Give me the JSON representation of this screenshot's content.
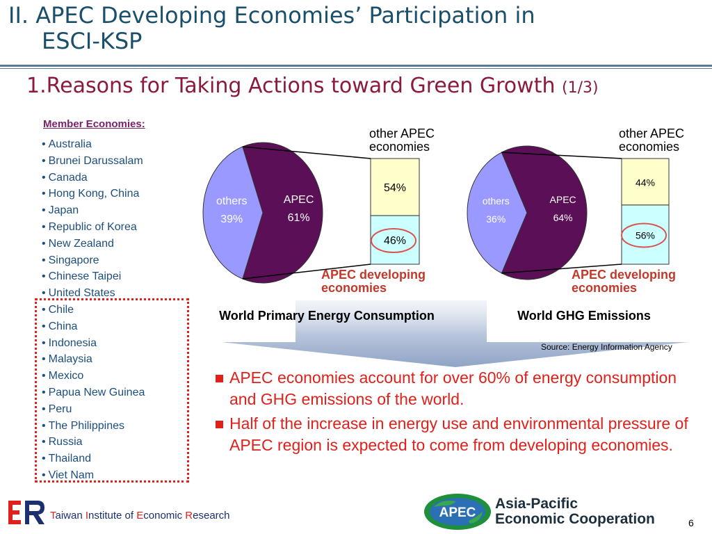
{
  "title": {
    "line1": "II. APEC Developing Economies’ Participation in",
    "line2": "ESCI-KSP"
  },
  "subtitle": {
    "main": "1.Reasons for Taking Actions toward Green Growth",
    "part": "(1/3)"
  },
  "members": {
    "heading": "Member Economies:",
    "developed": [
      "Australia",
      "Brunei Darussalam",
      "Canada",
      "Hong Kong, China",
      "Japan",
      "Republic of Korea",
      "New Zealand",
      "Singapore",
      "Chinese Taipei",
      "United States"
    ],
    "developing": [
      "Chile",
      "China",
      "Indonesia",
      "Malaysia",
      "Mexico",
      "Papua New Guinea",
      "Peru",
      "The Philippines",
      "Russia",
      "Thailand",
      "Viet Nam"
    ]
  },
  "chart_data": [
    {
      "type": "pie",
      "title": "World Primary Energy Consumption",
      "slices": [
        {
          "label": "others",
          "value": 39,
          "value_label": "39%"
        },
        {
          "label": "APEC",
          "value": 61,
          "value_label": "61%"
        }
      ],
      "breakdown": {
        "of": "APEC",
        "segments": [
          {
            "label": "other APEC economies",
            "label_lines": [
              "other APEC",
              "economies"
            ],
            "value": 54,
            "value_label": "54%"
          },
          {
            "label": "APEC developing economies",
            "label_lines": [
              "APEC developing",
              "economies"
            ],
            "value": 46,
            "value_label": "46%",
            "highlighted": true
          }
        ]
      }
    },
    {
      "type": "pie",
      "title": "World GHG Emissions",
      "slices": [
        {
          "label": "others",
          "value": 36,
          "value_label": "36%"
        },
        {
          "label": "APEC",
          "value": 64,
          "value_label": "64%"
        }
      ],
      "breakdown": {
        "of": "APEC",
        "segments": [
          {
            "label": "other APEC economies",
            "label_lines": [
              "other APEC",
              "economies"
            ],
            "value": 44,
            "value_label": "44%"
          },
          {
            "label": "APEC developing economies",
            "label_lines": [
              "APEC developing",
              "economies"
            ],
            "value": 56,
            "value_label": "56%",
            "highlighted": true
          }
        ]
      }
    }
  ],
  "source": "Source: Energy Information Agency",
  "bullets": [
    "APEC economies account for over 60% of energy consumption and GHG emissions of the world.",
    "Half of the increase in energy use and environmental pressure of APEC region is expected to come from developing economies."
  ],
  "footer": {
    "org_parts": [
      {
        "t": "T",
        "ini": true
      },
      {
        "t": "aiwan ",
        "ini": false
      },
      {
        "t": "I",
        "ini": true
      },
      {
        "t": "nstitute of ",
        "ini": false
      },
      {
        "t": "E",
        "ini": true
      },
      {
        "t": "conomic ",
        "ini": false
      },
      {
        "t": "R",
        "ini": true
      },
      {
        "t": "esearch",
        "ini": false
      }
    ],
    "apec_logo_text": "APEC",
    "apec_name_line1": "Asia-Pacific",
    "apec_name_line2": "Economic Cooperation",
    "page_number": "6"
  },
  "colors": {
    "apec": "#5b0f56",
    "others": "#9999ff",
    "other_apec": "#ffffcc",
    "developing": "#ccffff",
    "highlight": "#d9534f",
    "red": "#e0201a",
    "title": "#1a4f6b",
    "subtitle": "#8b1a3c"
  }
}
